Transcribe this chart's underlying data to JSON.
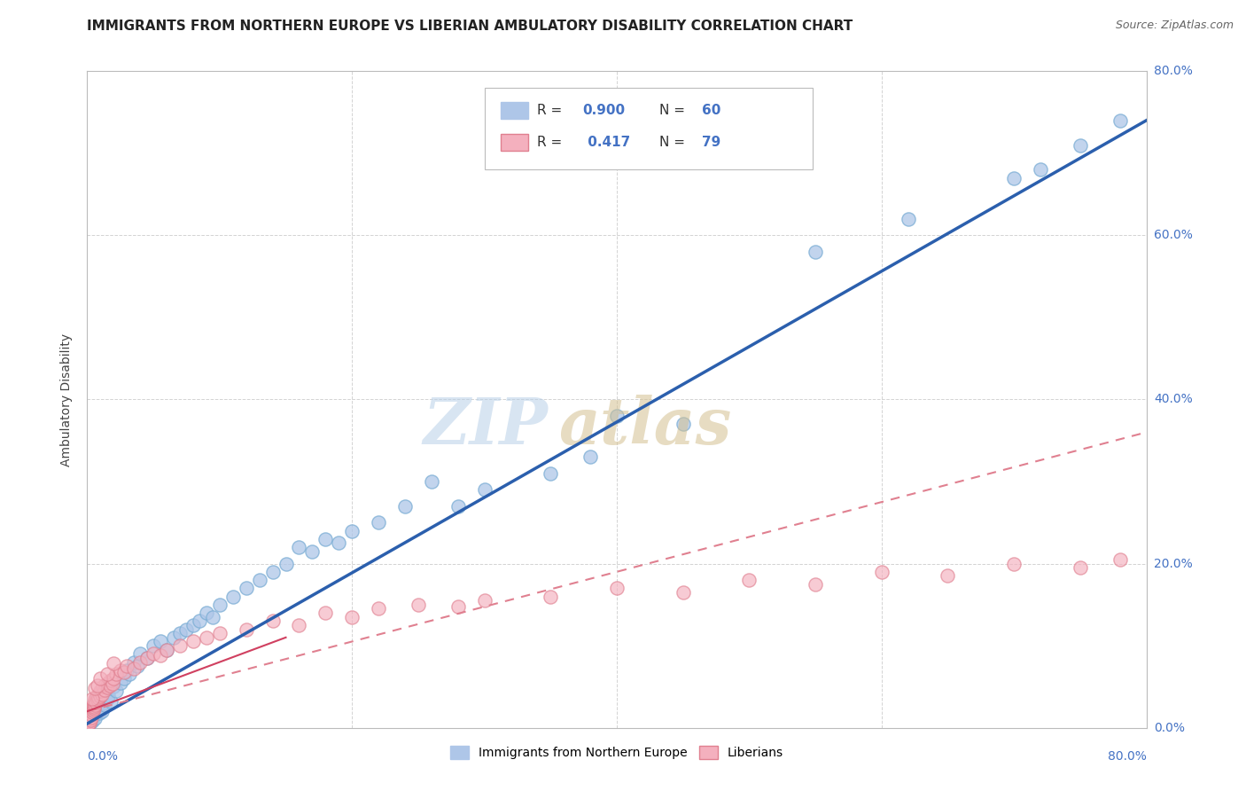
{
  "title": "IMMIGRANTS FROM NORTHERN EUROPE VS LIBERIAN AMBULATORY DISABILITY CORRELATION CHART",
  "source": "Source: ZipAtlas.com",
  "ylabel": "Ambulatory Disability",
  "xrange": [
    0.0,
    80.0
  ],
  "yrange": [
    0.0,
    80.0
  ],
  "ytick_values": [
    0.0,
    20.0,
    40.0,
    60.0,
    80.0
  ],
  "legend_bottom": [
    "Immigrants from Northern Europe",
    "Liberians"
  ],
  "title_fontsize": 11,
  "background_color": "#ffffff",
  "grid_color": "#c8c8c8",
  "blue_scatter": [
    [
      0.2,
      0.5
    ],
    [
      0.3,
      1.0
    ],
    [
      0.4,
      0.8
    ],
    [
      0.5,
      1.5
    ],
    [
      0.6,
      1.2
    ],
    [
      0.8,
      2.0
    ],
    [
      0.9,
      1.8
    ],
    [
      1.0,
      2.5
    ],
    [
      1.1,
      2.0
    ],
    [
      1.2,
      3.0
    ],
    [
      1.3,
      2.8
    ],
    [
      1.5,
      3.5
    ],
    [
      1.6,
      4.0
    ],
    [
      1.8,
      3.2
    ],
    [
      2.0,
      5.0
    ],
    [
      2.2,
      4.5
    ],
    [
      2.5,
      5.5
    ],
    [
      2.8,
      6.0
    ],
    [
      3.0,
      7.0
    ],
    [
      3.2,
      6.5
    ],
    [
      3.5,
      8.0
    ],
    [
      3.8,
      7.5
    ],
    [
      4.0,
      9.0
    ],
    [
      4.5,
      8.5
    ],
    [
      5.0,
      10.0
    ],
    [
      5.5,
      10.5
    ],
    [
      6.0,
      9.5
    ],
    [
      6.5,
      11.0
    ],
    [
      7.0,
      11.5
    ],
    [
      7.5,
      12.0
    ],
    [
      8.0,
      12.5
    ],
    [
      8.5,
      13.0
    ],
    [
      9.0,
      14.0
    ],
    [
      9.5,
      13.5
    ],
    [
      10.0,
      15.0
    ],
    [
      11.0,
      16.0
    ],
    [
      12.0,
      17.0
    ],
    [
      13.0,
      18.0
    ],
    [
      14.0,
      19.0
    ],
    [
      15.0,
      20.0
    ],
    [
      16.0,
      22.0
    ],
    [
      17.0,
      21.5
    ],
    [
      18.0,
      23.0
    ],
    [
      19.0,
      22.5
    ],
    [
      20.0,
      24.0
    ],
    [
      22.0,
      25.0
    ],
    [
      24.0,
      27.0
    ],
    [
      26.0,
      30.0
    ],
    [
      28.0,
      27.0
    ],
    [
      30.0,
      29.0
    ],
    [
      35.0,
      31.0
    ],
    [
      38.0,
      33.0
    ],
    [
      40.0,
      38.0
    ],
    [
      45.0,
      37.0
    ],
    [
      55.0,
      58.0
    ],
    [
      62.0,
      62.0
    ],
    [
      70.0,
      67.0
    ],
    [
      72.0,
      68.0
    ],
    [
      75.0,
      71.0
    ],
    [
      78.0,
      74.0
    ]
  ],
  "pink_scatter": [
    [
      0.05,
      0.3
    ],
    [
      0.08,
      0.5
    ],
    [
      0.1,
      0.8
    ],
    [
      0.12,
      1.0
    ],
    [
      0.15,
      0.6
    ],
    [
      0.18,
      1.2
    ],
    [
      0.2,
      1.5
    ],
    [
      0.22,
      0.9
    ],
    [
      0.25,
      1.8
    ],
    [
      0.28,
      1.3
    ],
    [
      0.3,
      2.0
    ],
    [
      0.32,
      1.6
    ],
    [
      0.35,
      2.2
    ],
    [
      0.38,
      1.9
    ],
    [
      0.4,
      2.5
    ],
    [
      0.42,
      2.1
    ],
    [
      0.45,
      2.8
    ],
    [
      0.48,
      2.3
    ],
    [
      0.5,
      3.0
    ],
    [
      0.52,
      2.6
    ],
    [
      0.55,
      3.2
    ],
    [
      0.58,
      2.8
    ],
    [
      0.6,
      3.5
    ],
    [
      0.65,
      3.1
    ],
    [
      0.7,
      3.8
    ],
    [
      0.75,
      3.4
    ],
    [
      0.8,
      4.0
    ],
    [
      0.85,
      3.6
    ],
    [
      0.9,
      4.2
    ],
    [
      0.95,
      3.9
    ],
    [
      1.0,
      4.5
    ],
    [
      1.1,
      4.1
    ],
    [
      1.2,
      5.0
    ],
    [
      1.3,
      4.6
    ],
    [
      1.4,
      5.3
    ],
    [
      1.5,
      4.9
    ],
    [
      1.6,
      5.5
    ],
    [
      1.7,
      5.1
    ],
    [
      1.8,
      5.8
    ],
    [
      1.9,
      5.4
    ],
    [
      2.0,
      6.0
    ],
    [
      2.2,
      6.5
    ],
    [
      2.5,
      7.0
    ],
    [
      2.8,
      6.8
    ],
    [
      3.0,
      7.5
    ],
    [
      3.5,
      7.2
    ],
    [
      4.0,
      8.0
    ],
    [
      4.5,
      8.5
    ],
    [
      5.0,
      9.0
    ],
    [
      5.5,
      8.8
    ],
    [
      6.0,
      9.5
    ],
    [
      7.0,
      10.0
    ],
    [
      8.0,
      10.5
    ],
    [
      9.0,
      11.0
    ],
    [
      10.0,
      11.5
    ],
    [
      12.0,
      12.0
    ],
    [
      14.0,
      13.0
    ],
    [
      16.0,
      12.5
    ],
    [
      18.0,
      14.0
    ],
    [
      20.0,
      13.5
    ],
    [
      22.0,
      14.5
    ],
    [
      25.0,
      15.0
    ],
    [
      28.0,
      14.8
    ],
    [
      30.0,
      15.5
    ],
    [
      35.0,
      16.0
    ],
    [
      40.0,
      17.0
    ],
    [
      45.0,
      16.5
    ],
    [
      50.0,
      18.0
    ],
    [
      55.0,
      17.5
    ],
    [
      60.0,
      19.0
    ],
    [
      65.0,
      18.5
    ],
    [
      70.0,
      20.0
    ],
    [
      75.0,
      19.5
    ],
    [
      78.0,
      20.5
    ],
    [
      0.4,
      3.5
    ],
    [
      0.6,
      4.8
    ],
    [
      0.8,
      5.2
    ],
    [
      1.0,
      6.0
    ],
    [
      1.5,
      6.5
    ],
    [
      2.0,
      7.8
    ]
  ],
  "blue_line_x": [
    0.0,
    80.0
  ],
  "blue_line_y": [
    0.5,
    74.0
  ],
  "pink_line_x": [
    0.0,
    80.0
  ],
  "pink_line_y": [
    2.0,
    36.0
  ]
}
